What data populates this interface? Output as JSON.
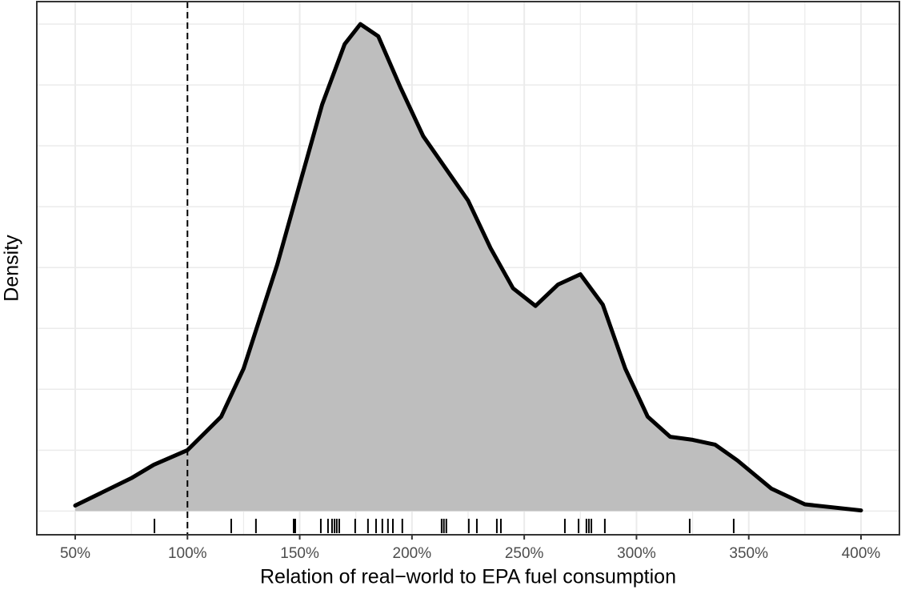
{
  "chart_data": {
    "type": "density",
    "xlabel": "Relation of real−world to EPA fuel consumption",
    "ylabel": "Density",
    "x": [
      50,
      75,
      85,
      100,
      115,
      125,
      140,
      150,
      160,
      170,
      177,
      185,
      195,
      205,
      215,
      225,
      235,
      245,
      255,
      265,
      275,
      285,
      295,
      305,
      315,
      325,
      335,
      345,
      360,
      375,
      400
    ],
    "values": [
      0.09,
      0.54,
      0.76,
      1.0,
      1.55,
      2.34,
      4.05,
      5.37,
      6.68,
      7.67,
      8.0,
      7.8,
      6.95,
      6.16,
      5.63,
      5.1,
      4.32,
      3.66,
      3.37,
      3.72,
      3.89,
      3.39,
      2.34,
      1.55,
      1.22,
      1.17,
      1.09,
      0.83,
      0.37,
      0.11,
      0.01
    ],
    "color": "#bebebe",
    "rug": [
      85.3,
      119.5,
      130.5,
      147.3,
      148.0,
      159.4,
      162.6,
      164.4,
      165.5,
      166.5,
      167.6,
      174.7,
      180.4,
      184.0,
      186.8,
      189.3,
      191.5,
      195.7,
      213.2,
      214.2,
      215.3,
      225.3,
      228.9,
      237.8,
      239.6,
      268.1,
      274.2,
      277.7,
      278.8,
      279.9,
      285.9,
      323.7,
      343.3
    ],
    "vline": 100,
    "xlim": [
      32.9,
      417.1
    ],
    "ylim": [
      -0.39,
      8.37
    ],
    "xticks": [
      {
        "value": 50,
        "label": "50%"
      },
      {
        "value": 100,
        "label": "100%"
      },
      {
        "value": 150,
        "label": "150%"
      },
      {
        "value": 200,
        "label": "200%"
      },
      {
        "value": 250,
        "label": "250%"
      },
      {
        "value": 300,
        "label": "300%"
      },
      {
        "value": 350,
        "label": "350%"
      },
      {
        "value": 400,
        "label": "400%"
      }
    ],
    "xminor": [
      75,
      125,
      175,
      225,
      275,
      325,
      375
    ],
    "yticks": [
      0,
      1,
      2,
      3,
      4,
      5,
      6,
      7,
      8
    ],
    "grid": true
  }
}
